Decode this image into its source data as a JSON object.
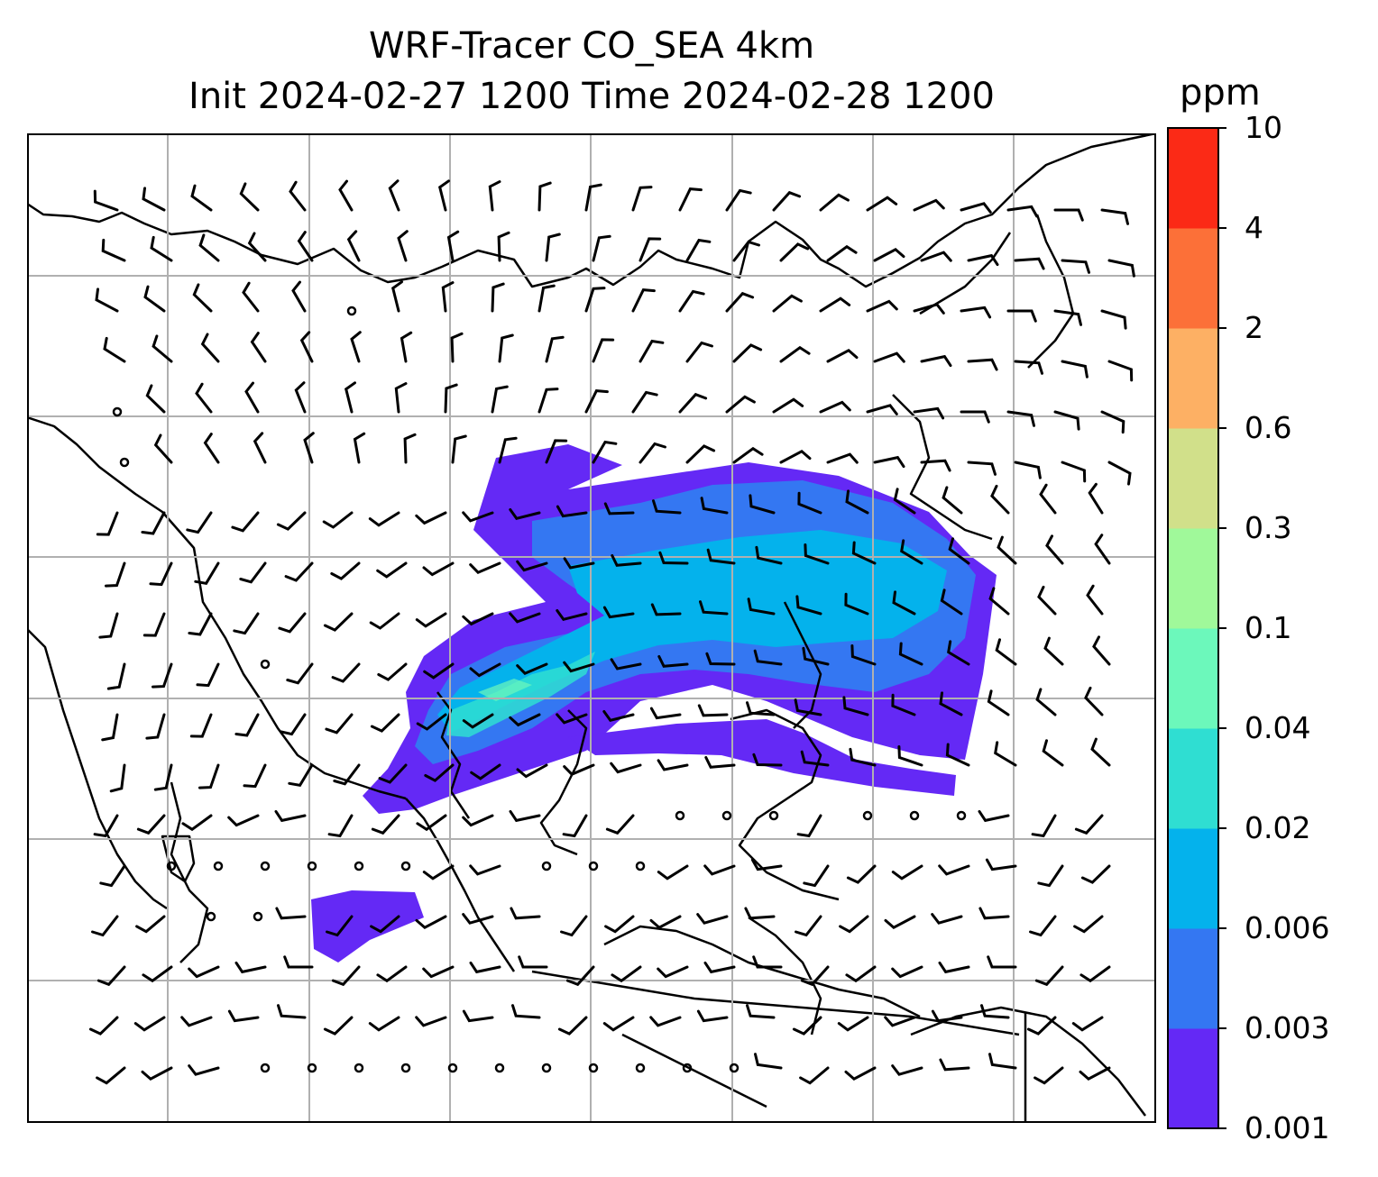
{
  "figure": {
    "title_line1": "WRF-Tracer CO_SEA 4km",
    "title_line2": "Init 2024-02-27 1200 Time 2024-02-28 1200"
  },
  "colorbar": {
    "unit": "ppm",
    "ticks": [
      "0.001",
      "0.003",
      "0.006",
      "0.02",
      "0.04",
      "0.1",
      "0.3",
      "0.6",
      "2",
      "4",
      "10"
    ],
    "colors": [
      "#6429f5",
      "#3477f2",
      "#04b2ec",
      "#2fded2",
      "#6cf8bb",
      "#a0f99a",
      "#d1e08a",
      "#fdb064",
      "#fc7038",
      "#fb2a16"
    ]
  },
  "map": {
    "grid": true,
    "field": "CO tracer concentration",
    "wind_barbs": true
  }
}
